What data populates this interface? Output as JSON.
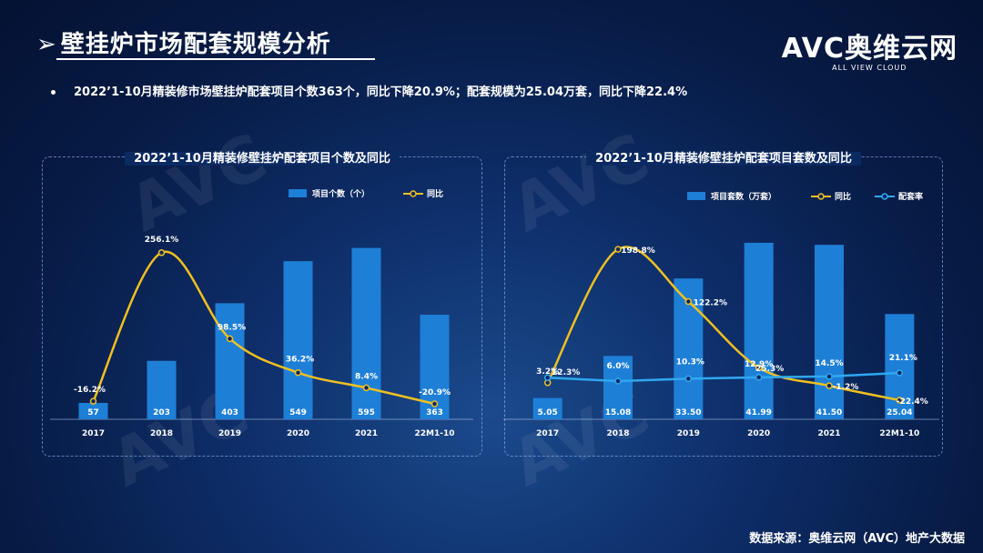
{
  "page_title": "壁挂炉市场配套规模分析",
  "logo": {
    "mark": "AVC奥维云网",
    "sub": "ALL VIEW CLOUD"
  },
  "bullet_text": "2022’1-10月精装修市场壁挂炉配套项目个数363个，同比下降20.9%；配套规模为25.04万套，同比下降22.4%",
  "source": "数据来源：奥维云网（AVC）地产大数据",
  "colors": {
    "bar": "#1e7fd6",
    "yoy": "#f0c020",
    "rate": "#2fa8f0"
  },
  "chart_data": [
    {
      "type": "bar",
      "title": "2022’1-10月精装修壁挂炉配套项目个数及同比",
      "categories": [
        "2017",
        "2018",
        "2019",
        "2020",
        "2021",
        "22M1-10"
      ],
      "series": [
        {
          "name": "项目个数（个）",
          "type": "bar",
          "values": [
            57,
            203,
            403,
            549,
            595,
            363
          ],
          "labels": [
            "57",
            "203",
            "403",
            "549",
            "595",
            "363"
          ]
        },
        {
          "name": "同比",
          "type": "line",
          "values": [
            -16.2,
            256.1,
            98.5,
            36.2,
            8.4,
            -20.9
          ],
          "labels": [
            "-16.2%",
            "256.1%",
            "98.5%",
            "36.2%",
            "8.4%",
            "-20.9%"
          ]
        }
      ],
      "legend": "top-right"
    },
    {
      "type": "bar",
      "title": "2022’1-10月精装修壁挂炉配套项目套数及同比",
      "categories": [
        "2017",
        "2018",
        "2019",
        "2020",
        "2021",
        "22M1-10"
      ],
      "series": [
        {
          "name": "项目套数（万套）",
          "type": "bar",
          "values": [
            5.05,
            15.08,
            33.5,
            41.99,
            41.5,
            25.04
          ],
          "labels": [
            "5.05",
            "15.08",
            "33.50",
            "41.99",
            "41.50",
            "25.04"
          ]
        },
        {
          "name": "同比",
          "type": "line",
          "values": [
            3.2,
            198.8,
            122.2,
            25.3,
            -1.2,
            -22.4
          ],
          "labels": [
            "3.2%",
            "198.8%",
            "122.2%",
            "25.3%",
            "-1.2%",
            "-22.4%"
          ]
        },
        {
          "name": "配套率",
          "type": "line",
          "values": [
            12.3,
            6.0,
            10.3,
            12.9,
            14.5,
            21.1
          ],
          "labels": [
            "12.3%",
            "6.0%",
            "10.3%",
            "12.9%",
            "14.5%",
            "21.1%"
          ]
        }
      ],
      "legend": "top-right"
    }
  ]
}
